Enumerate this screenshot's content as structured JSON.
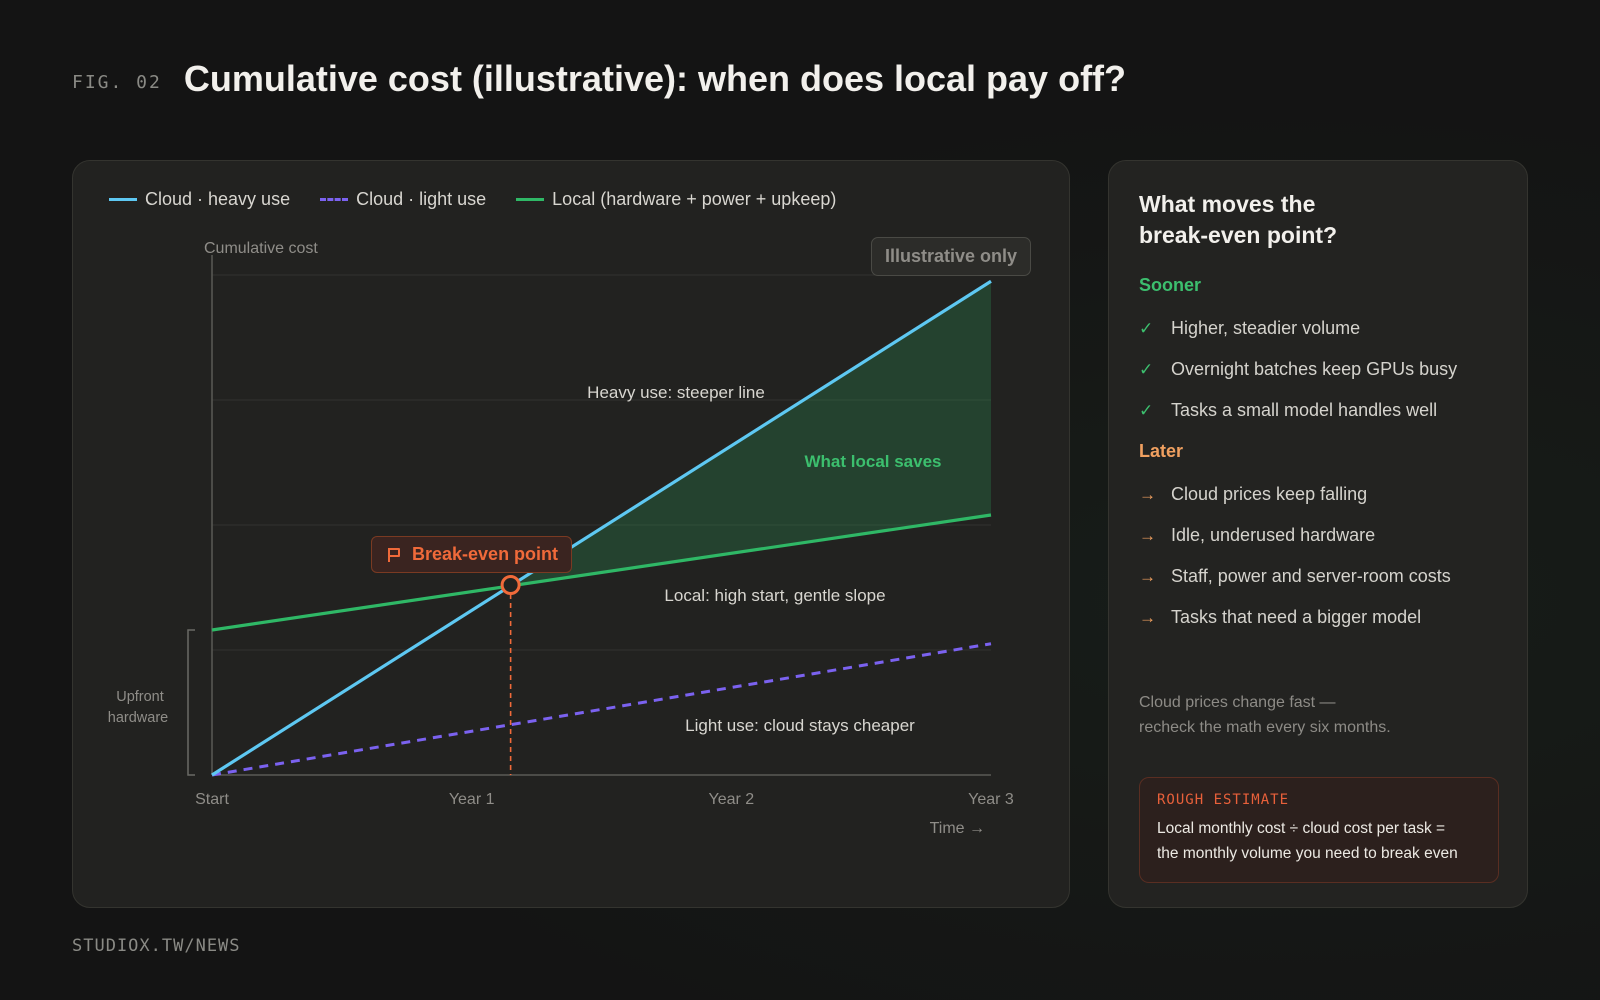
{
  "header": {
    "fig_label": "FIG. 02",
    "title": "Cumulative cost (illustrative): when does local pay off?"
  },
  "chart_data": {
    "type": "line",
    "title": "Cumulative cost (illustrative): when does local pay off?",
    "ylabel": "Cumulative cost",
    "xlabel": "Time →",
    "x_ticks": [
      "Start",
      "Year 1",
      "Year 2",
      "Year 3"
    ],
    "xlim": [
      0,
      3
    ],
    "ylim": [
      0,
      4
    ],
    "grid": true,
    "legend_position": "top-left",
    "series": [
      {
        "name": "Cloud · heavy use",
        "color": "#5ec8f2",
        "dash": false,
        "x": [
          0,
          3
        ],
        "y": [
          0,
          3.95
        ]
      },
      {
        "name": "Cloud · light use",
        "color": "#7b62f0",
        "dash": true,
        "x": [
          0,
          3
        ],
        "y": [
          0,
          1.05
        ]
      },
      {
        "name": "Local (hardware + power + upkeep)",
        "color": "#2fb866",
        "dash": false,
        "x": [
          0,
          3
        ],
        "y": [
          1.16,
          2.08
        ]
      }
    ],
    "break_even": {
      "x": 1.15,
      "y": 1.52,
      "label": "Break-even point"
    },
    "savings_label": "What local saves",
    "annotations": [
      "Heavy use: steeper line",
      "Local: high start, gentle slope",
      "Light use: cloud stays cheaper"
    ],
    "upfront_label": [
      "Upfront",
      "hardware"
    ],
    "badge": "Illustrative only"
  },
  "sidebar": {
    "title": "What moves the break-even point?",
    "sooner": {
      "title": "Sooner",
      "color": "#3cbf6e",
      "icon": "check-icon",
      "items": [
        "Higher, steadier volume",
        "Overnight batches keep GPUs busy",
        "Tasks a small model handles well"
      ]
    },
    "later": {
      "title": "Later",
      "color": "#f0a060",
      "icon": "arrow-right-icon",
      "items": [
        "Cloud prices keep falling",
        "Idle, underused hardware",
        "Staff, power and server-room costs",
        "Tasks that need a bigger model"
      ]
    },
    "note": [
      "Cloud prices change fast —",
      "recheck the math every six months."
    ],
    "estimate": {
      "label": "ROUGH ESTIMATE",
      "lines": [
        "Local monthly cost ÷ cloud cost per task =",
        "the monthly volume you need to break even"
      ]
    }
  },
  "footer": "STUDIOX.TW/NEWS"
}
